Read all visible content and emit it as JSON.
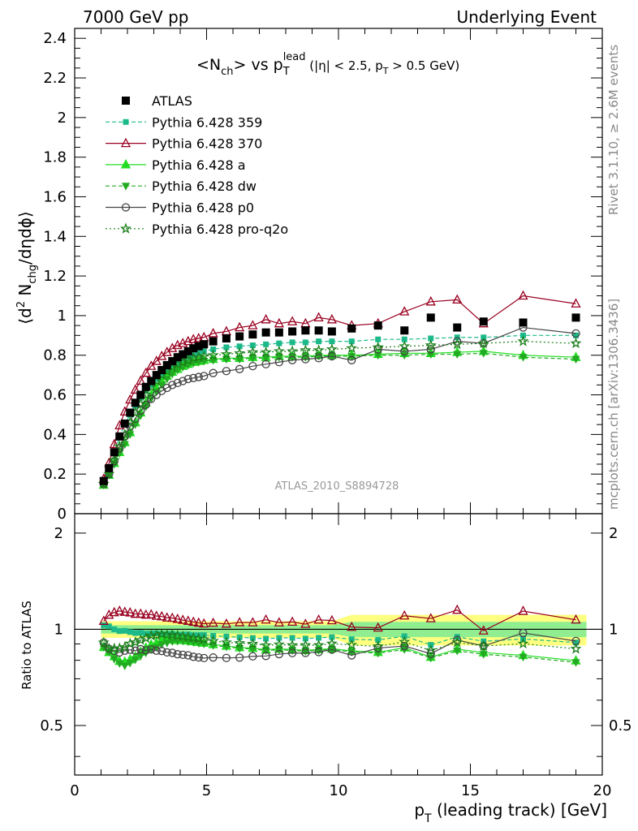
{
  "header": {
    "left": "7000 GeV pp",
    "right": "Underlying Event"
  },
  "side_text": {
    "rivet": "Rivet 3.1.10, ≥ 2.6M events",
    "mcplots": "mcplots.cern.ch [arXiv:1306.3436]"
  },
  "chart_data": {
    "type": "scatter",
    "title": "<N_ch> vs p_T^lead (|η| < 2.5, p_T > 0.5 GeV)",
    "analysis_label": "ATLAS_2010_S8894728",
    "xlabel": "p_T (leading track) [GeV]",
    "ylabel": "⟨d² N_chg/dηdϕ⟩",
    "ratio_ylabel": "Ratio to ATLAS",
    "xlim": [
      0,
      20
    ],
    "ylim": [
      0,
      2.45
    ],
    "ratio_ylim": [
      0.35,
      2.3
    ],
    "x_ticks": [
      "0",
      "5",
      "10",
      "15",
      "20"
    ],
    "y_ticks": [
      "0",
      "0.2",
      "0.4",
      "0.6",
      "0.8",
      "1",
      "1.2",
      "1.4",
      "1.6",
      "1.8",
      "2",
      "2.2",
      "2.4"
    ],
    "ratio_ticks": [
      "0.5",
      "1",
      "2"
    ],
    "legend_position": "top-left",
    "x": [
      1.1,
      1.3,
      1.5,
      1.7,
      1.9,
      2.1,
      2.3,
      2.5,
      2.7,
      2.9,
      3.1,
      3.3,
      3.5,
      3.7,
      3.9,
      4.1,
      4.3,
      4.5,
      4.7,
      4.9,
      5.25,
      5.75,
      6.25,
      6.75,
      7.25,
      7.75,
      8.25,
      8.75,
      9.25,
      9.75,
      10.5,
      11.5,
      12.5,
      13.5,
      14.5,
      15.5,
      17.0,
      19.0
    ],
    "series": [
      {
        "name": "ATLAS",
        "color": "#000000",
        "marker": "square",
        "line": "none",
        "values": [
          0.165,
          0.23,
          0.31,
          0.39,
          0.455,
          0.51,
          0.56,
          0.6,
          0.64,
          0.67,
          0.7,
          0.725,
          0.75,
          0.77,
          0.79,
          0.805,
          0.82,
          0.835,
          0.845,
          0.855,
          0.87,
          0.885,
          0.895,
          0.905,
          0.915,
          0.915,
          0.92,
          0.925,
          0.925,
          0.92,
          0.935,
          0.95,
          0.925,
          0.99,
          0.94,
          0.97,
          0.965,
          0.99
        ]
      },
      {
        "name": "Pythia 6.428 359",
        "color": "#1cb98a",
        "marker": "square-small",
        "line": "dashed",
        "values": [
          0.17,
          0.235,
          0.31,
          0.385,
          0.45,
          0.5,
          0.545,
          0.585,
          0.62,
          0.65,
          0.68,
          0.7,
          0.725,
          0.745,
          0.76,
          0.775,
          0.79,
          0.8,
          0.81,
          0.82,
          0.83,
          0.84,
          0.845,
          0.85,
          0.855,
          0.86,
          0.865,
          0.865,
          0.87,
          0.87,
          0.87,
          0.88,
          0.88,
          0.885,
          0.89,
          0.89,
          0.9,
          0.9
        ]
      },
      {
        "name": "Pythia 6.428 370",
        "color": "#990020",
        "marker": "triangle-open",
        "line": "solid",
        "values": [
          0.175,
          0.255,
          0.35,
          0.445,
          0.515,
          0.575,
          0.625,
          0.67,
          0.71,
          0.745,
          0.77,
          0.795,
          0.815,
          0.835,
          0.85,
          0.86,
          0.87,
          0.88,
          0.885,
          0.89,
          0.91,
          0.92,
          0.94,
          0.95,
          0.98,
          0.96,
          0.97,
          0.96,
          0.99,
          0.98,
          0.95,
          0.96,
          1.02,
          1.07,
          1.08,
          0.96,
          1.1,
          1.06
        ]
      },
      {
        "name": "Pythia 6.428 a",
        "color": "#22dd22",
        "marker": "triangle",
        "line": "solid",
        "values": [
          0.145,
          0.195,
          0.255,
          0.31,
          0.36,
          0.41,
          0.46,
          0.51,
          0.56,
          0.6,
          0.635,
          0.67,
          0.695,
          0.715,
          0.73,
          0.745,
          0.755,
          0.765,
          0.77,
          0.775,
          0.78,
          0.785,
          0.785,
          0.79,
          0.79,
          0.795,
          0.795,
          0.795,
          0.8,
          0.8,
          0.8,
          0.805,
          0.81,
          0.81,
          0.815,
          0.82,
          0.8,
          0.79
        ]
      },
      {
        "name": "Pythia 6.428 dw",
        "color": "#22aa22",
        "marker": "triangle-down",
        "line": "dashed",
        "values": [
          0.145,
          0.195,
          0.25,
          0.305,
          0.35,
          0.4,
          0.45,
          0.495,
          0.54,
          0.58,
          0.615,
          0.65,
          0.68,
          0.705,
          0.725,
          0.74,
          0.75,
          0.76,
          0.765,
          0.77,
          0.775,
          0.78,
          0.78,
          0.785,
          0.785,
          0.79,
          0.79,
          0.79,
          0.795,
          0.795,
          0.795,
          0.8,
          0.8,
          0.805,
          0.805,
          0.81,
          0.79,
          0.78
        ]
      },
      {
        "name": "Pythia 6.428 p0",
        "color": "#444444",
        "marker": "circle-open",
        "line": "solid",
        "values": [
          0.15,
          0.2,
          0.265,
          0.33,
          0.39,
          0.44,
          0.48,
          0.52,
          0.55,
          0.58,
          0.6,
          0.62,
          0.635,
          0.65,
          0.66,
          0.67,
          0.68,
          0.685,
          0.69,
          0.695,
          0.71,
          0.72,
          0.73,
          0.745,
          0.755,
          0.765,
          0.775,
          0.78,
          0.785,
          0.795,
          0.775,
          0.83,
          0.82,
          0.83,
          0.87,
          0.86,
          0.94,
          0.91
        ]
      },
      {
        "name": "Pythia 6.428 pro-q2o",
        "color": "#1a7f1a",
        "marker": "star",
        "line": "dotted",
        "values": [
          0.15,
          0.2,
          0.27,
          0.34,
          0.4,
          0.46,
          0.51,
          0.555,
          0.6,
          0.64,
          0.67,
          0.7,
          0.72,
          0.74,
          0.755,
          0.765,
          0.775,
          0.785,
          0.79,
          0.795,
          0.8,
          0.805,
          0.81,
          0.815,
          0.815,
          0.82,
          0.82,
          0.825,
          0.825,
          0.83,
          0.835,
          0.84,
          0.845,
          0.85,
          0.855,
          0.86,
          0.87,
          0.86
        ]
      }
    ],
    "ratio_band": {
      "inner_color": "#90ee90",
      "outer_color": "#ffff80"
    }
  }
}
